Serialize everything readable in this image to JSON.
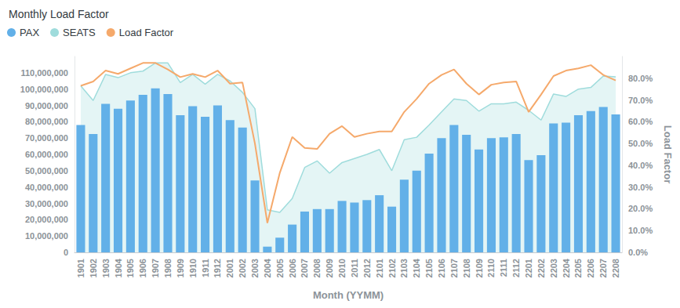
{
  "chart_data": {
    "type": "bar",
    "title": "Monthly Load Factor",
    "x_label": "Month (YYMM)",
    "y2_label": "Load Factor",
    "legend": "top-left",
    "grid": false,
    "categories": [
      "1901",
      "1902",
      "1903",
      "1904",
      "1905",
      "1906",
      "1907",
      "1908",
      "1909",
      "1910",
      "1911",
      "1912",
      "2001",
      "2002",
      "2003",
      "2004",
      "2005",
      "2006",
      "2007",
      "2008",
      "2009",
      "2010",
      "2011",
      "2012",
      "2101",
      "2102",
      "2103",
      "2104",
      "2105",
      "2106",
      "2107",
      "2108",
      "2109",
      "2110",
      "2111",
      "2112",
      "2201",
      "2202",
      "2203",
      "2204",
      "2205",
      "2206",
      "2207",
      "2208"
    ],
    "series": [
      {
        "name": "PAX",
        "type": "bar",
        "color": "#62b0e8",
        "values": [
          78000000,
          72500000,
          91000000,
          88000000,
          93000000,
          96500000,
          100500000,
          97000000,
          84000000,
          89500000,
          83000000,
          90000000,
          81000000,
          76500000,
          44000000,
          3500000,
          9000000,
          17000000,
          25000000,
          26500000,
          26500000,
          31500000,
          30500000,
          32000000,
          35000000,
          28000000,
          44500000,
          50000000,
          60500000,
          70000000,
          78000000,
          72000000,
          63000000,
          70000000,
          70500000,
          72500000,
          56500000,
          59500000,
          79000000,
          79500000,
          84000000,
          86500000,
          89000000,
          84500000
        ]
      },
      {
        "name": "SEATS",
        "type": "area",
        "color": "#9fdcdc",
        "values": [
          102000000,
          93000000,
          109000000,
          107000000,
          110000000,
          111000000,
          116000000,
          116000000,
          104000000,
          109000000,
          103000000,
          109000000,
          105000000,
          98000000,
          88000000,
          26000000,
          24500000,
          33000000,
          52000000,
          56000000,
          48500000,
          55000000,
          57500000,
          60000000,
          63000000,
          50000000,
          69000000,
          70500000,
          78000000,
          86000000,
          94000000,
          93000000,
          86500000,
          91000000,
          91000000,
          92000000,
          87000000,
          81000000,
          97000000,
          95500000,
          100000000,
          101000000,
          108000000,
          107500000
        ]
      },
      {
        "name": "Load Factor",
        "type": "line",
        "color": "#f5a96b",
        "axis": "y2",
        "values": [
          76.5,
          78.5,
          83.5,
          82,
          84.5,
          87,
          87,
          84,
          80.5,
          82,
          80.5,
          83.5,
          77.5,
          78,
          50,
          13.5,
          36.5,
          53,
          48,
          47.5,
          54.5,
          58,
          53,
          54.5,
          55.5,
          55.5,
          64.5,
          70.5,
          77.5,
          81.5,
          84,
          77.5,
          72.5,
          77,
          78,
          78.5,
          64.5,
          72.5,
          81,
          83.5,
          84.5,
          86,
          81.5,
          79
        ]
      }
    ],
    "ylim": [
      0,
      120000000
    ],
    "yticks": [
      0,
      {
        "value": 10000000,
        "label": "10,000,000"
      },
      {
        "value": 20000000,
        "label": "20,000,000"
      },
      {
        "value": 30000000,
        "label": "30,000,000"
      },
      {
        "value": 40000000,
        "label": "40,000,000"
      },
      {
        "value": 50000000,
        "label": "50,000,000"
      },
      {
        "value": 60000000,
        "label": "60,000,000"
      },
      {
        "value": 70000000,
        "label": "70,000,000"
      },
      {
        "value": 80000000,
        "label": "80,000,000"
      },
      {
        "value": 90000000,
        "label": "90,000,000"
      },
      {
        "value": 100000000,
        "label": "100,000,000"
      },
      {
        "value": 110000000,
        "label": "110,000,000"
      }
    ],
    "y2lim": [
      0,
      90
    ],
    "y2ticks": [
      {
        "value": 0,
        "label": "0.0%"
      },
      {
        "value": 10,
        "label": "10.0%"
      },
      {
        "value": 20,
        "label": "20.0%"
      },
      {
        "value": 30,
        "label": "30.0%"
      },
      {
        "value": 40,
        "label": "40.0%"
      },
      {
        "value": 50,
        "label": "50.0%"
      },
      {
        "value": 60,
        "label": "60.0%"
      },
      {
        "value": 70,
        "label": "70.0%"
      },
      {
        "value": 80,
        "label": "80.0%"
      }
    ]
  }
}
